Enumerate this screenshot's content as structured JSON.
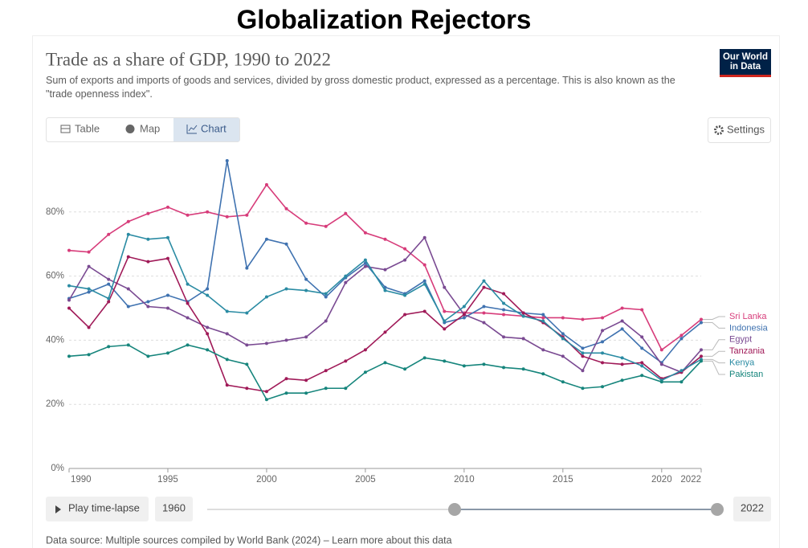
{
  "header": {
    "title": "Globalization Rejectors"
  },
  "chart_data": {
    "type": "line",
    "title": "Trade as a share of GDP, 1990 to 2022",
    "subtitle": "Sum of exports and imports of goods and services, divided by gross domestic product, expressed as a percentage. This is also known as the \"trade openness index\".",
    "x": [
      1990,
      1991,
      1992,
      1993,
      1994,
      1995,
      1996,
      1997,
      1998,
      1999,
      2000,
      2001,
      2002,
      2003,
      2004,
      2005,
      2006,
      2007,
      2008,
      2009,
      2010,
      2011,
      2012,
      2013,
      2014,
      2015,
      2016,
      2017,
      2018,
      2019,
      2020,
      2021,
      2022
    ],
    "xlim": [
      1990,
      2022
    ],
    "xticks": [
      1990,
      1995,
      2000,
      2005,
      2010,
      2015,
      2020,
      2022
    ],
    "ylim": [
      0,
      100
    ],
    "yticks": [
      {
        "value": 0,
        "label": "0%"
      },
      {
        "value": 20,
        "label": "20%"
      },
      {
        "value": 40,
        "label": "40%"
      },
      {
        "value": 60,
        "label": "60%"
      },
      {
        "value": 80,
        "label": "80%"
      }
    ],
    "grid": true,
    "series": [
      {
        "name": "Sri Lanka",
        "color": "#d73c7a",
        "values": [
          68,
          67.5,
          73,
          77,
          79.5,
          81.5,
          79,
          80,
          78.5,
          79,
          88.5,
          81,
          76.5,
          75.5,
          79.5,
          73.5,
          71.5,
          68.5,
          63.5,
          49,
          48.5,
          48.5,
          48,
          47.5,
          47,
          47,
          46.5,
          47,
          50,
          49.5,
          37,
          41.5,
          46.5
        ]
      },
      {
        "name": "Indonesia",
        "color": "#3f72b0",
        "values": [
          53,
          55,
          57.5,
          50.5,
          52,
          54,
          52,
          56,
          96,
          62.5,
          71.5,
          70,
          59,
          53.5,
          59.5,
          64,
          56.5,
          54.5,
          58.5,
          45.5,
          47,
          50.5,
          49.5,
          48.5,
          48,
          42,
          37.5,
          39.5,
          43.5,
          37.5,
          33,
          40.5,
          45.5
        ]
      },
      {
        "name": "Egypt",
        "color": "#7a4a92",
        "values": [
          52.5,
          63,
          59,
          56,
          50.5,
          50,
          47,
          44,
          42,
          38.5,
          39,
          40,
          41,
          46,
          58,
          63,
          62,
          65,
          72,
          56.5,
          48,
          45.5,
          41,
          40.5,
          37,
          35,
          30.5,
          43,
          46,
          41,
          32.5,
          30,
          37
        ]
      },
      {
        "name": "Tanzania",
        "color": "#a01a58",
        "values": [
          50,
          44,
          52,
          66,
          64.5,
          65.5,
          51.5,
          42,
          26,
          25,
          24,
          28,
          27.5,
          30.5,
          33.5,
          37,
          42.5,
          48,
          49,
          43.5,
          48,
          56.5,
          54.5,
          48.5,
          45.5,
          41,
          35,
          33,
          32.5,
          33,
          28,
          30,
          35
        ]
      },
      {
        "name": "Kenya",
        "color": "#2a8ba3",
        "values": [
          57,
          56,
          53,
          73,
          71.5,
          72,
          57.5,
          54,
          49,
          48.5,
          53.5,
          56,
          55.5,
          54.5,
          60,
          65,
          55.5,
          54,
          57.5,
          46,
          50.5,
          58.5,
          51.5,
          47.5,
          46,
          40.5,
          36,
          36,
          34.5,
          32,
          27.5,
          30.5,
          34
        ]
      },
      {
        "name": "Pakistan",
        "color": "#16857c",
        "values": [
          35,
          35.5,
          38,
          38.5,
          35,
          36,
          38.5,
          37,
          34,
          32.5,
          21.5,
          23.5,
          23.5,
          25,
          25,
          30,
          33,
          31,
          34.5,
          33.5,
          32,
          32.5,
          31.5,
          31,
          29.5,
          27,
          25,
          25.5,
          27.5,
          29,
          27,
          27,
          33.5
        ]
      }
    ]
  },
  "ui": {
    "logo": [
      "Our World",
      "in Data"
    ],
    "tabs": [
      "Table",
      "Map",
      "Chart"
    ],
    "settings": "Settings",
    "timeline": {
      "play": "Play time-lapse",
      "start": "1960",
      "end": "2022"
    },
    "source": "Data source: Multiple sources compiled by World Bank (2024) – Learn more about this data"
  }
}
